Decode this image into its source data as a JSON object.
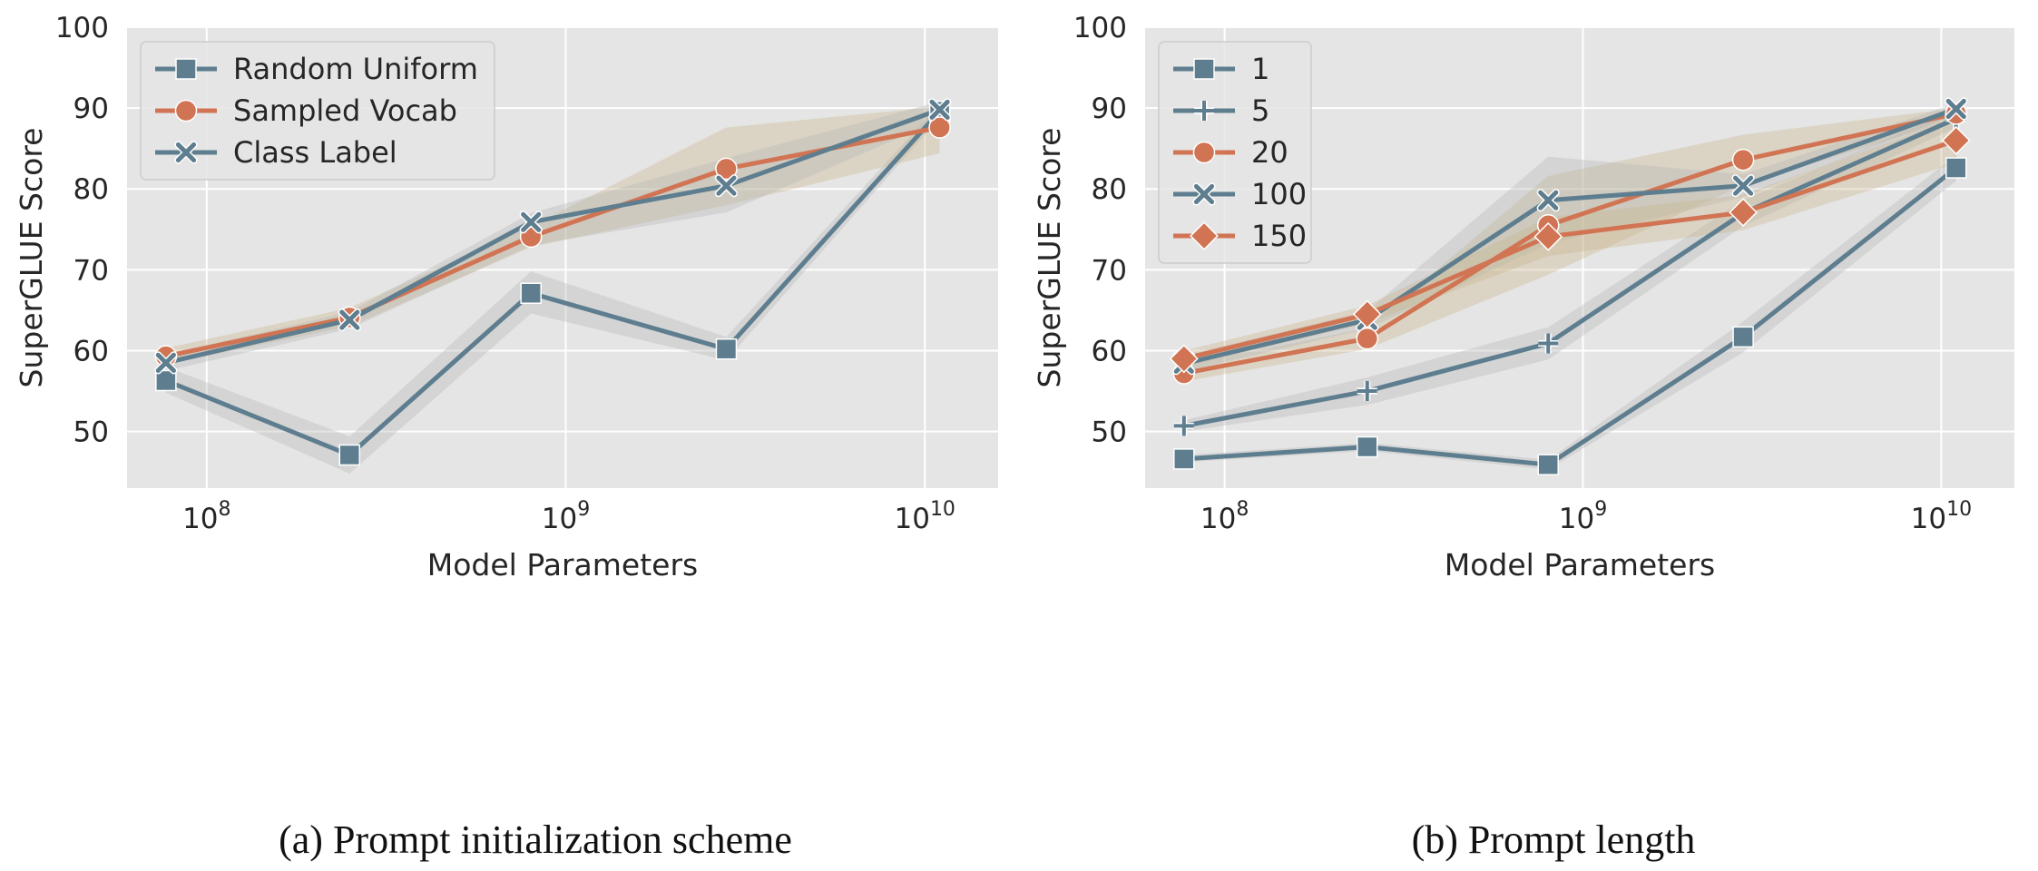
{
  "colors": {
    "slate": "#5e7e8f",
    "orange": "#d17453",
    "panel_bg": "#e5e5e5",
    "grid": "#ffffff",
    "band": "#b4b4b4"
  },
  "chart_data": [
    {
      "type": "line",
      "caption": "(a) Prompt initialization scheme",
      "xlabel": "Model Parameters",
      "ylabel": "SuperGLUE Score",
      "x_scale": "log",
      "xlim": [
        60000000.0,
        16000000000.0
      ],
      "ylim": [
        43,
        100
      ],
      "yticks": [
        "50",
        "60",
        "70",
        "80",
        "90",
        "100"
      ],
      "xticks": [
        {
          "value": 100000000.0,
          "base": "10",
          "exp": "8"
        },
        {
          "value": 1000000000.0,
          "base": "10",
          "exp": "9"
        },
        {
          "value": 10000000000.0,
          "base": "10",
          "exp": "10"
        }
      ],
      "grid": true,
      "legend_position": "top-left",
      "x": [
        77000000.0,
        250000000.0,
        800000000.0,
        2800000000.0,
        11000000000.0
      ],
      "series": [
        {
          "name": "Random Uniform",
          "color": "#5e7e8f",
          "marker": "square",
          "values": [
            56.3,
            47.1,
            67.1,
            60.2,
            89.6
          ],
          "lower": [
            54.8,
            44.8,
            64.6,
            58.8,
            88.8
          ],
          "upper": [
            58.0,
            49.4,
            69.8,
            61.7,
            90.5
          ]
        },
        {
          "name": "Sampled Vocab",
          "color": "#d17453",
          "marker": "circle",
          "values": [
            59.3,
            64.1,
            74.1,
            82.5,
            87.6
          ],
          "lower": [
            58.3,
            63.0,
            72.8,
            78.0,
            84.4
          ],
          "upper": [
            60.3,
            65.3,
            75.4,
            87.6,
            90.2
          ]
        },
        {
          "name": "Class Label",
          "color": "#5e7e8f",
          "marker": "x",
          "values": [
            58.5,
            63.8,
            75.9,
            80.4,
            89.8
          ],
          "lower": [
            57.5,
            62.7,
            73.0,
            77.1,
            88.5
          ],
          "upper": [
            59.5,
            64.8,
            77.0,
            83.8,
            90.8
          ]
        }
      ]
    },
    {
      "type": "line",
      "caption": "(b) Prompt length",
      "xlabel": "Model Parameters",
      "ylabel": "SuperGLUE Score",
      "x_scale": "log",
      "xlim": [
        60000000.0,
        16000000000.0
      ],
      "ylim": [
        43,
        100
      ],
      "yticks": [
        "50",
        "60",
        "70",
        "80",
        "90",
        "100"
      ],
      "xticks": [
        {
          "value": 100000000.0,
          "base": "10",
          "exp": "8"
        },
        {
          "value": 1000000000.0,
          "base": "10",
          "exp": "9"
        },
        {
          "value": 10000000000.0,
          "base": "10",
          "exp": "10"
        }
      ],
      "grid": true,
      "legend_position": "top-left",
      "x": [
        77000000.0,
        250000000.0,
        800000000.0,
        2800000000.0,
        11000000000.0
      ],
      "series": [
        {
          "name": "1",
          "color": "#5e7e8f",
          "marker": "square",
          "values": [
            46.6,
            48.1,
            45.9,
            61.7,
            82.6
          ],
          "lower": [
            46.2,
            47.6,
            45.3,
            59.8,
            81.0
          ],
          "upper": [
            47.1,
            48.6,
            46.5,
            63.6,
            84.2
          ]
        },
        {
          "name": "5",
          "color": "#5e7e8f",
          "marker": "plus",
          "values": [
            50.7,
            55.0,
            60.9,
            77.0,
            88.7
          ],
          "lower": [
            50.0,
            53.3,
            58.9,
            75.4,
            87.6
          ],
          "upper": [
            51.4,
            56.7,
            62.9,
            78.6,
            89.8
          ]
        },
        {
          "name": "20",
          "color": "#d17453",
          "marker": "circle",
          "values": [
            57.2,
            61.5,
            75.5,
            83.6,
            89.3
          ],
          "lower": [
            56.2,
            60.2,
            69.4,
            80.5,
            88.6
          ],
          "upper": [
            58.2,
            62.8,
            81.6,
            86.7,
            90.0
          ]
        },
        {
          "name": "100",
          "color": "#5e7e8f",
          "marker": "x",
          "values": [
            58.4,
            63.8,
            78.6,
            80.4,
            89.9
          ],
          "lower": [
            57.4,
            62.7,
            73.2,
            79.0,
            89.2
          ],
          "upper": [
            59.4,
            64.9,
            84.0,
            81.8,
            90.6
          ]
        },
        {
          "name": "150",
          "color": "#d17453",
          "marker": "diamond",
          "values": [
            59.0,
            64.5,
            74.1,
            77.1,
            86.0
          ],
          "lower": [
            58.0,
            63.4,
            71.7,
            74.9,
            83.2
          ],
          "upper": [
            60.0,
            65.6,
            76.5,
            79.3,
            88.8
          ]
        }
      ]
    }
  ]
}
